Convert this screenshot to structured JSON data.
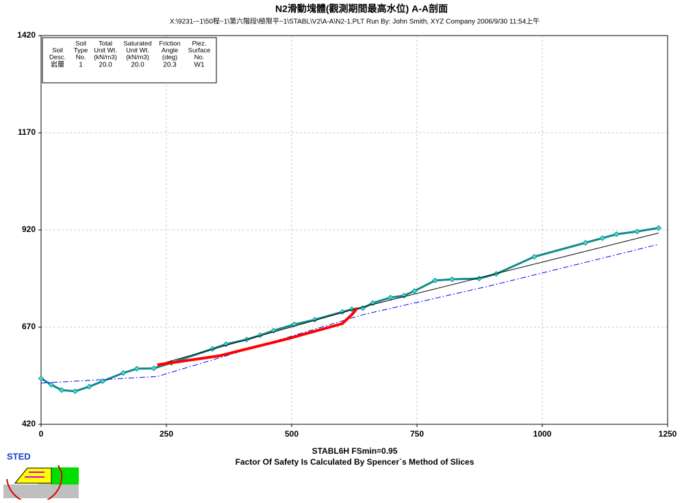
{
  "chart_data": {
    "type": "line",
    "title": "N2滑動塊體(觀測期間最高水位) A-A剖面",
    "subtitle": "X:\\9231-~1\\50程~1\\第六階段\\極限平~1\\STABL\\V2\\A-A\\N2-1.PLT   Run By: John Smith, XYZ Company   2006/9/30   11:54上午",
    "xlabel": [
      "STABL6H  FSmin=0.95",
      "Factor Of Safety Is Calculated By Spencer`s Method of Slices"
    ],
    "logo": "STED",
    "xlim": [
      0,
      1250
    ],
    "ylim": [
      420,
      1420
    ],
    "xticks": [
      0,
      250,
      500,
      750,
      1000,
      1250
    ],
    "yticks": [
      420,
      670,
      920,
      1170,
      1420
    ],
    "grid": true,
    "series": [
      {
        "color": "#138a8a",
        "linestyle": "solid",
        "width": 3,
        "markers": true,
        "x": [
          0,
          20,
          41,
          68,
          96,
          123,
          164,
          191,
          225,
          260,
          342,
          369,
          410,
          437,
          464,
          505,
          546,
          601,
          620,
          642,
          662,
          697,
          724,
          745,
          786,
          820,
          874,
          908,
          984,
          1086,
          1120,
          1148,
          1189,
          1232
        ],
        "values": [
          538,
          522,
          508,
          505,
          517,
          531,
          552,
          563,
          564,
          578,
          614,
          626,
          638,
          649,
          661,
          677,
          689,
          709,
          716,
          719,
          732,
          746,
          751,
          763,
          790,
          793,
          795,
          807,
          851,
          887,
          899,
          909,
          916,
          925
        ]
      },
      {
        "color": "#0000ff",
        "linestyle": "dashdot",
        "width": 1,
        "markers": false,
        "x": [
          0,
          232,
          642,
          895,
          1232
        ],
        "values": [
          526,
          543,
          702,
          776,
          883
        ]
      },
      {
        "color": "#000000",
        "linestyle": "solid",
        "width": 1,
        "markers": false,
        "x": [
          232,
          630,
          1232
        ],
        "values": [
          573,
          718,
          912
        ]
      },
      {
        "color": "#ff0000",
        "linestyle": "solid",
        "width": 4,
        "markers": false,
        "x": [
          232,
          355,
          492,
          601,
          620,
          631
        ],
        "values": [
          573,
          596,
          640,
          679,
          702,
          719
        ]
      }
    ],
    "soil_table": {
      "columns": [
        [
          "Soil",
          "Desc."
        ],
        [
          "Soil",
          "Type",
          "No."
        ],
        [
          "Total",
          "Unit Wt.",
          "(kN/m3)"
        ],
        [
          "Saturated",
          "Unit Wt.",
          "(kN/m3)"
        ],
        [
          "Friction",
          "Angle",
          "(deg)"
        ],
        [
          "Piez.",
          "Surface",
          "No."
        ]
      ],
      "rows": [
        [
          "岩層",
          "1",
          "20.0",
          "20.0",
          "20.3",
          "W1"
        ]
      ]
    }
  }
}
